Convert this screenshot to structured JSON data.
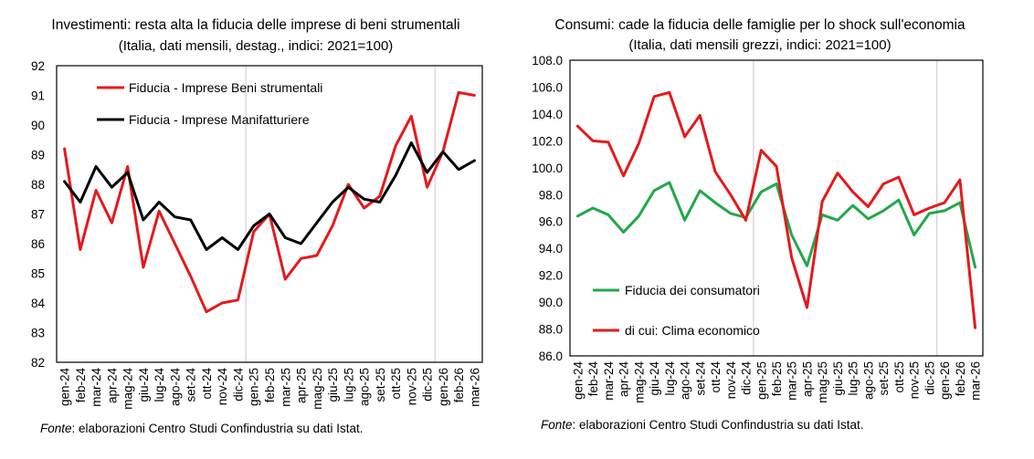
{
  "chart_data": [
    {
      "type": "line",
      "title": "Investimenti: resta alta la fiducia delle imprese di beni strumentali",
      "subtitle": "(Italia, dati mensili, destag., indici: 2021=100)",
      "categories": [
        "gen-24",
        "feb-24",
        "mar-24",
        "apr-24",
        "mag-24",
        "giu-24",
        "lug-24",
        "ago-24",
        "set-24",
        "ott-24",
        "nov-24",
        "dic-24",
        "gen-25",
        "feb-25",
        "mar-25",
        "apr-25",
        "mag-25",
        "giu-25",
        "lug-25",
        "ago-25",
        "set-25",
        "ott-25",
        "nov-25",
        "dic-25",
        "gen-26",
        "feb-26",
        "mar-26"
      ],
      "yticks": [
        "92",
        "91",
        "90",
        "89",
        "88",
        "87",
        "86",
        "85",
        "84",
        "83",
        "82"
      ],
      "ylim": [
        82,
        92
      ],
      "series": [
        {
          "name": "Fiducia - Imprese Beni strumentali",
          "color": "#e5191c",
          "values": [
            89.2,
            85.8,
            87.8,
            86.7,
            88.6,
            85.2,
            87.1,
            86.0,
            84.9,
            83.7,
            84.0,
            84.1,
            86.4,
            87.0,
            84.8,
            85.5,
            85.6,
            86.6,
            88.0,
            87.2,
            87.6,
            89.3,
            90.3,
            87.9,
            89.1,
            91.1,
            91.0
          ]
        },
        {
          "name": "Fiducia - Imprese Manifatturiere",
          "color": "#000000",
          "values": [
            88.1,
            87.4,
            88.6,
            87.9,
            88.4,
            86.8,
            87.4,
            86.9,
            86.8,
            85.8,
            86.2,
            85.8,
            86.6,
            87.0,
            86.2,
            86.0,
            86.7,
            87.4,
            87.9,
            87.5,
            87.4,
            88.3,
            89.4,
            88.4,
            89.1,
            88.5,
            88.8
          ]
        }
      ],
      "source_label": "Fonte",
      "source_text": ": elaborazioni Centro Studi Confindustria su dati Istat."
    },
    {
      "type": "line",
      "title": "Consumi: cade la fiducia delle famiglie per lo shock sull'economia",
      "subtitle": "(Italia, dati mensili grezzi, indici: 2021=100)",
      "categories": [
        "gen-24",
        "feb-24",
        "mar-24",
        "apr-24",
        "mag-24",
        "giu-24",
        "lug-24",
        "ago-24",
        "set-24",
        "ott-24",
        "nov-24",
        "dic-24",
        "gen-25",
        "feb-25",
        "mar-25",
        "apr-25",
        "mag-25",
        "giu-25",
        "lug-25",
        "ago-25",
        "set-25",
        "ott-25",
        "nov-25",
        "dic-25",
        "gen-26",
        "feb-26",
        "mar-26"
      ],
      "yticks": [
        "108.0",
        "106.0",
        "104.0",
        "102.0",
        "100.0",
        "98.0",
        "96.0",
        "94.0",
        "92.0",
        "90.0",
        "88.0",
        "86.0"
      ],
      "ylim": [
        86,
        108
      ],
      "series": [
        {
          "name": "Fiducia dei consumatori",
          "color": "#22a84a",
          "values": [
            96.4,
            97.0,
            96.5,
            95.2,
            96.4,
            98.3,
            98.9,
            96.1,
            98.3,
            97.4,
            96.6,
            96.3,
            98.2,
            98.8,
            95.0,
            92.7,
            96.5,
            96.1,
            97.2,
            96.2,
            96.8,
            97.6,
            95.0,
            96.6,
            96.8,
            97.4,
            92.6
          ]
        },
        {
          "name": "di cui: Clima economico",
          "color": "#e5191c",
          "values": [
            103.1,
            102.0,
            101.9,
            99.4,
            101.8,
            105.3,
            105.6,
            102.3,
            103.9,
            99.7,
            98.0,
            96.1,
            101.3,
            100.1,
            93.3,
            89.6,
            97.5,
            99.6,
            98.2,
            97.1,
            98.8,
            99.3,
            96.5,
            97.0,
            97.4,
            99.1,
            88.1
          ]
        }
      ],
      "source_label": "Fonte",
      "source_text": ": elaborazioni Centro Studi Confindustria su dati Istat."
    }
  ]
}
